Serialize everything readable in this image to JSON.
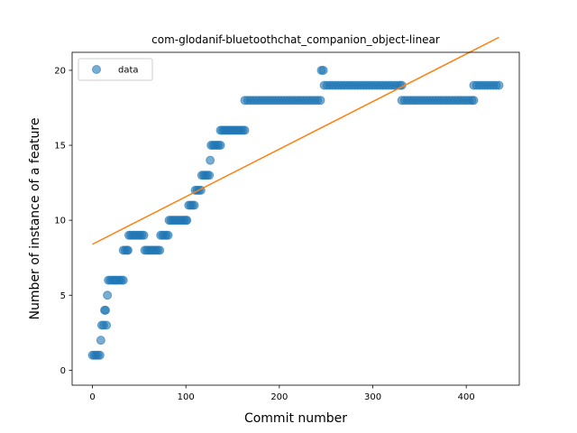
{
  "chart_data": {
    "type": "scatter",
    "title": "com-glodanif-bluetoothchat_companion_object-linear",
    "xlabel": "Commit number",
    "ylabel": "Number of instance of a feature",
    "xlim": [
      -21.75,
      456.75
    ],
    "ylim": [
      -1,
      21.2
    ],
    "xticks": [
      0,
      100,
      200,
      300,
      400
    ],
    "yticks": [
      0,
      5,
      10,
      15,
      20
    ],
    "grid": false,
    "legend": {
      "placement": "top-left",
      "entries": [
        "data"
      ]
    },
    "series": [
      {
        "name": "data",
        "kind": "scatter",
        "color": "#1f77b4",
        "points": [
          [
            0,
            1
          ],
          [
            2,
            1
          ],
          [
            4,
            1
          ],
          [
            6,
            1
          ],
          [
            8,
            1
          ],
          [
            9,
            2
          ],
          [
            10,
            3
          ],
          [
            12,
            3
          ],
          [
            13,
            4
          ],
          [
            14,
            4
          ],
          [
            15,
            3
          ],
          [
            16,
            5
          ],
          [
            17,
            6
          ],
          [
            19,
            6
          ],
          [
            21,
            6
          ],
          [
            23,
            6
          ],
          [
            25,
            6
          ],
          [
            27,
            6
          ],
          [
            29,
            6
          ],
          [
            31,
            6
          ],
          [
            33,
            6
          ],
          [
            33,
            8
          ],
          [
            35,
            8
          ],
          [
            37,
            8
          ],
          [
            38,
            8
          ],
          [
            39,
            9
          ],
          [
            41,
            9
          ],
          [
            43,
            9
          ],
          [
            45,
            9
          ],
          [
            47,
            9
          ],
          [
            49,
            9
          ],
          [
            51,
            9
          ],
          [
            53,
            9
          ],
          [
            55,
            9
          ],
          [
            56,
            8
          ],
          [
            58,
            8
          ],
          [
            60,
            8
          ],
          [
            62,
            8
          ],
          [
            64,
            8
          ],
          [
            66,
            8
          ],
          [
            68,
            8
          ],
          [
            70,
            8
          ],
          [
            72,
            8
          ],
          [
            73,
            9
          ],
          [
            75,
            9
          ],
          [
            77,
            9
          ],
          [
            79,
            9
          ],
          [
            81,
            9
          ],
          [
            82,
            10
          ],
          [
            84,
            10
          ],
          [
            86,
            10
          ],
          [
            88,
            10
          ],
          [
            90,
            10
          ],
          [
            92,
            10
          ],
          [
            94,
            10
          ],
          [
            96,
            10
          ],
          [
            98,
            10
          ],
          [
            100,
            10
          ],
          [
            101,
            10
          ],
          [
            103,
            11
          ],
          [
            105,
            11
          ],
          [
            107,
            11
          ],
          [
            109,
            11
          ],
          [
            110,
            12
          ],
          [
            112,
            12
          ],
          [
            114,
            12
          ],
          [
            116,
            12
          ],
          [
            117,
            13
          ],
          [
            119,
            13
          ],
          [
            121,
            13
          ],
          [
            123,
            13
          ],
          [
            125,
            13
          ],
          [
            126,
            14
          ],
          [
            127,
            15
          ],
          [
            129,
            15
          ],
          [
            131,
            15
          ],
          [
            133,
            15
          ],
          [
            135,
            15
          ],
          [
            137,
            15
          ],
          [
            137,
            16
          ],
          [
            139,
            16
          ],
          [
            141,
            16
          ],
          [
            143,
            16
          ],
          [
            145,
            16
          ],
          [
            147,
            16
          ],
          [
            149,
            16
          ],
          [
            151,
            16
          ],
          [
            153,
            16
          ],
          [
            155,
            16
          ],
          [
            157,
            16
          ],
          [
            159,
            16
          ],
          [
            161,
            16
          ],
          [
            163,
            16
          ],
          [
            163,
            18
          ],
          [
            166,
            18
          ],
          [
            169,
            18
          ],
          [
            172,
            18
          ],
          [
            175,
            18
          ],
          [
            178,
            18
          ],
          [
            181,
            18
          ],
          [
            184,
            18
          ],
          [
            187,
            18
          ],
          [
            190,
            18
          ],
          [
            193,
            18
          ],
          [
            196,
            18
          ],
          [
            199,
            18
          ],
          [
            202,
            18
          ],
          [
            205,
            18
          ],
          [
            208,
            18
          ],
          [
            211,
            18
          ],
          [
            214,
            18
          ],
          [
            217,
            18
          ],
          [
            220,
            18
          ],
          [
            223,
            18
          ],
          [
            226,
            18
          ],
          [
            229,
            18
          ],
          [
            232,
            18
          ],
          [
            235,
            18
          ],
          [
            238,
            18
          ],
          [
            241,
            18
          ],
          [
            244,
            18
          ],
          [
            245,
            20
          ],
          [
            247,
            20
          ],
          [
            248,
            19
          ],
          [
            251,
            19
          ],
          [
            254,
            19
          ],
          [
            257,
            19
          ],
          [
            260,
            19
          ],
          [
            263,
            19
          ],
          [
            266,
            19
          ],
          [
            269,
            19
          ],
          [
            272,
            19
          ],
          [
            275,
            19
          ],
          [
            278,
            19
          ],
          [
            281,
            19
          ],
          [
            284,
            19
          ],
          [
            287,
            19
          ],
          [
            290,
            19
          ],
          [
            293,
            19
          ],
          [
            296,
            19
          ],
          [
            299,
            19
          ],
          [
            302,
            19
          ],
          [
            305,
            19
          ],
          [
            308,
            19
          ],
          [
            311,
            19
          ],
          [
            314,
            19
          ],
          [
            317,
            19
          ],
          [
            320,
            19
          ],
          [
            323,
            19
          ],
          [
            326,
            19
          ],
          [
            329,
            19
          ],
          [
            331,
            19
          ],
          [
            331,
            18
          ],
          [
            334,
            18
          ],
          [
            337,
            18
          ],
          [
            340,
            18
          ],
          [
            343,
            18
          ],
          [
            346,
            18
          ],
          [
            349,
            18
          ],
          [
            352,
            18
          ],
          [
            355,
            18
          ],
          [
            358,
            18
          ],
          [
            361,
            18
          ],
          [
            364,
            18
          ],
          [
            367,
            18
          ],
          [
            370,
            18
          ],
          [
            373,
            18
          ],
          [
            376,
            18
          ],
          [
            379,
            18
          ],
          [
            382,
            18
          ],
          [
            385,
            18
          ],
          [
            388,
            18
          ],
          [
            391,
            18
          ],
          [
            394,
            18
          ],
          [
            397,
            18
          ],
          [
            400,
            18
          ],
          [
            403,
            18
          ],
          [
            406,
            18
          ],
          [
            408,
            18
          ],
          [
            408,
            19
          ],
          [
            411,
            19
          ],
          [
            414,
            19
          ],
          [
            417,
            19
          ],
          [
            420,
            19
          ],
          [
            423,
            19
          ],
          [
            426,
            19
          ],
          [
            429,
            19
          ],
          [
            432,
            19
          ],
          [
            435,
            19
          ]
        ]
      },
      {
        "kind": "line",
        "color": "#ff7f0e",
        "points": [
          [
            0,
            8.4
          ],
          [
            435,
            22.2
          ]
        ]
      }
    ]
  }
}
